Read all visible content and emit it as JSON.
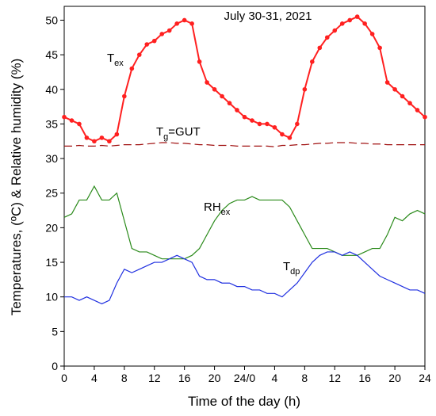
{
  "chart_data": {
    "type": "line",
    "title": "July 30-31, 2021",
    "xlabel": "Time of the day (h)",
    "ylabel": "Temperatures, (ºC) & Relative humidity (%)",
    "x": [
      0,
      1,
      2,
      3,
      4,
      5,
      6,
      7,
      8,
      9,
      10,
      11,
      12,
      13,
      14,
      15,
      16,
      17,
      18,
      19,
      20,
      21,
      22,
      23,
      24,
      25,
      26,
      27,
      28,
      29,
      30,
      31,
      32,
      33,
      34,
      35,
      36,
      37,
      38,
      39,
      40,
      41,
      42,
      43,
      44,
      45,
      46,
      47,
      48
    ],
    "xlim": [
      0,
      48
    ],
    "xticks": [
      0,
      4,
      8,
      12,
      16,
      20,
      {
        "value": 24,
        "label": "24/0"
      },
      {
        "value": 28,
        "label": "4"
      },
      {
        "value": 32,
        "label": "8"
      },
      {
        "value": 36,
        "label": "12"
      },
      {
        "value": 40,
        "label": "16"
      },
      {
        "value": 44,
        "label": "20"
      },
      {
        "value": 48,
        "label": "24"
      }
    ],
    "ylim": [
      0,
      52
    ],
    "yticks": [
      0,
      5,
      10,
      15,
      20,
      25,
      30,
      35,
      40,
      45,
      50
    ],
    "series": [
      {
        "name": "T",
        "subscript": "ex",
        "color": "#ff2020",
        "markers": true,
        "dashed": false,
        "values": [
          36,
          35.5,
          35,
          33,
          32.5,
          33,
          32.5,
          33.5,
          39,
          43,
          45,
          46.5,
          47,
          48,
          48.5,
          49.5,
          50,
          49.5,
          44,
          41,
          40,
          39,
          38,
          37,
          36,
          35.5,
          35,
          35,
          34.5,
          33.5,
          33,
          35,
          40,
          44,
          46,
          47.5,
          48.5,
          49.5,
          50,
          50.5,
          49.5,
          48,
          46,
          41,
          40,
          39,
          38,
          37,
          36
        ]
      },
      {
        "name": "T",
        "subscript": "g",
        "suffix": "=GUT",
        "color": "#a01010",
        "markers": false,
        "dashed": true,
        "values": [
          31.8,
          31.8,
          31.9,
          31.8,
          31.8,
          31.9,
          31.8,
          31.9,
          32,
          32,
          32,
          32.1,
          32.2,
          32.3,
          32.3,
          32.2,
          32.2,
          32.1,
          32,
          32,
          31.9,
          31.9,
          31.9,
          31.8,
          31.8,
          31.8,
          31.8,
          31.8,
          31.7,
          31.9,
          31.9,
          32,
          32,
          32.1,
          32.2,
          32.2,
          32.3,
          32.3,
          32.3,
          32.2,
          32.2,
          32.1,
          32.1,
          32,
          32,
          32,
          32,
          32,
          32
        ]
      },
      {
        "name": "RH",
        "subscript": "ex",
        "color": "#2a8a1a",
        "markers": false,
        "dashed": false,
        "values": [
          21.5,
          22,
          24,
          24,
          26,
          24,
          24,
          25,
          21,
          17,
          16.5,
          16.5,
          16,
          15.5,
          15.5,
          15.5,
          15.5,
          16,
          17,
          19,
          21,
          22.5,
          23.5,
          24,
          24,
          24.5,
          24,
          24,
          24,
          24,
          23,
          21,
          19,
          17,
          17,
          17,
          16.5,
          16,
          16,
          16,
          16.5,
          17,
          17,
          19,
          21.5,
          21,
          22,
          22.5,
          22
        ]
      },
      {
        "name": "T",
        "subscript": "dp",
        "color": "#1f2fe0",
        "markers": false,
        "dashed": false,
        "values": [
          10,
          10,
          9.5,
          10,
          9.5,
          9,
          9.5,
          12,
          14,
          13.5,
          14,
          14.5,
          15,
          15,
          15.5,
          16,
          15.5,
          15,
          13,
          12.5,
          12.5,
          12,
          12,
          11.5,
          11.5,
          11,
          11,
          10.5,
          10.5,
          10,
          11,
          12,
          13.5,
          15,
          16,
          16.5,
          16.5,
          16,
          16.5,
          16,
          15,
          14,
          13,
          12.5,
          12,
          11.5,
          11,
          11,
          10.5
        ]
      }
    ]
  }
}
